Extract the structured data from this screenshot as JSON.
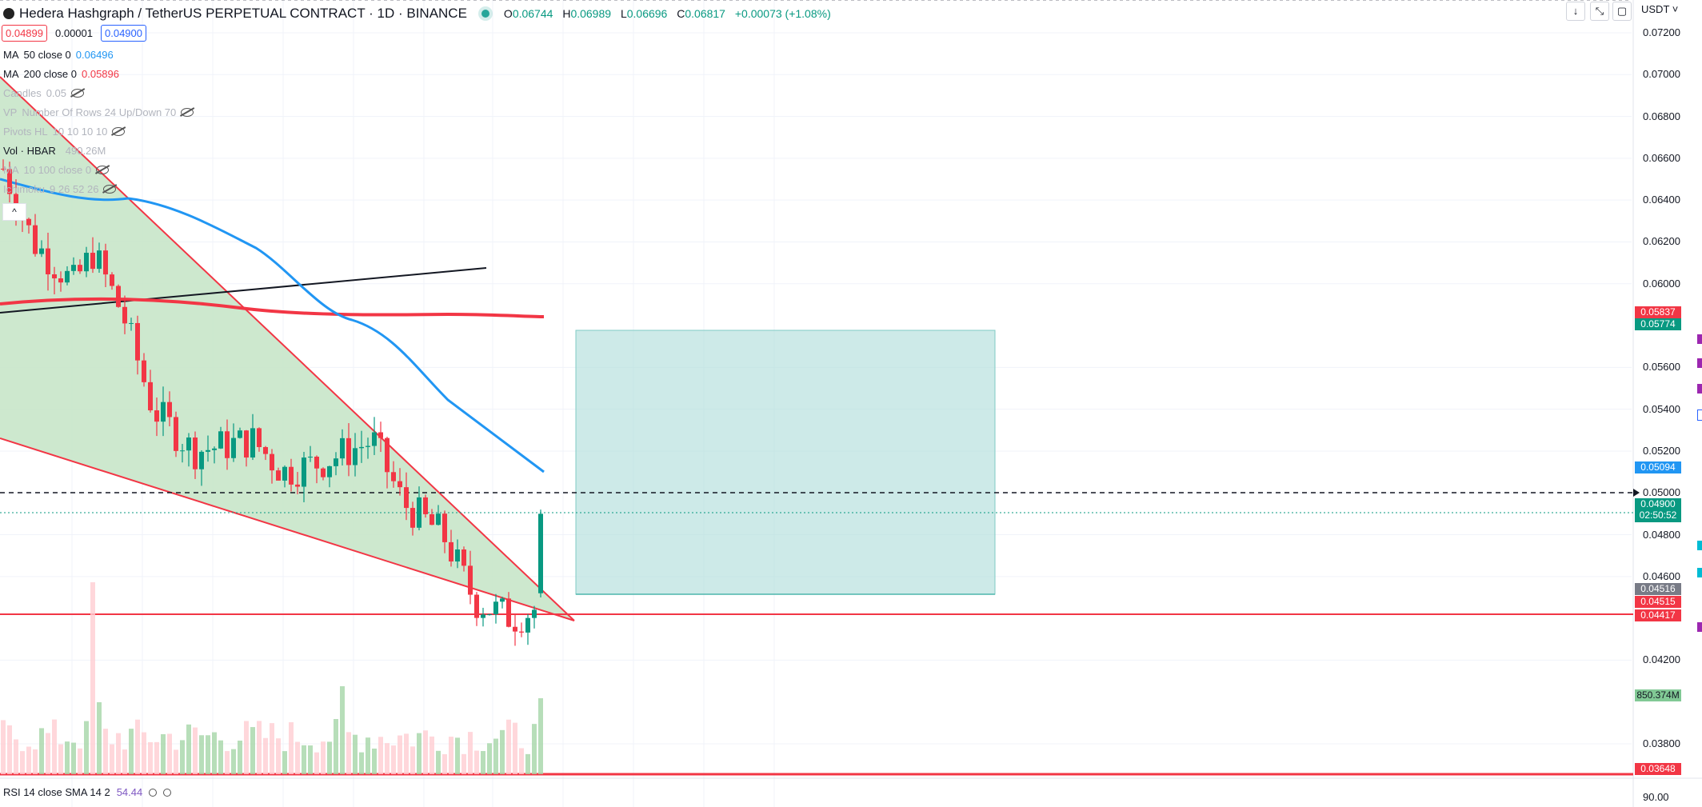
{
  "header": {
    "title": "Hedera Hashgraph / TetherUS PERPETUAL CONTRACT · 1D · BINANCE",
    "ohlc": [
      {
        "k": "O",
        "v": "0.06744"
      },
      {
        "k": "H",
        "v": "0.06989"
      },
      {
        "k": "L",
        "v": "0.06696"
      },
      {
        "k": "C",
        "v": "0.06817"
      }
    ],
    "change": "+0.00073 (+1.08%)"
  },
  "quote": {
    "bid": "0.04899",
    "spread": "0.00001",
    "ask": "0.04900"
  },
  "legend": [
    {
      "name": "MA",
      "params": "50 close 0",
      "value": "0.06496",
      "value_color": "#2196f3",
      "dim": false,
      "eye": false
    },
    {
      "name": "MA",
      "params": "200 close 0",
      "value": "0.05896",
      "value_color": "#f23645",
      "dim": false,
      "eye": false
    },
    {
      "name": "Candles",
      "params": "0.05",
      "value": "",
      "dim": true,
      "eye": true
    },
    {
      "name": "VP",
      "params": "Number Of Rows 24 Up/Down 70",
      "value": "",
      "dim": true,
      "eye": true
    },
    {
      "name": "Pivots HL",
      "params": "10 10 10 10",
      "value": "",
      "dim": true,
      "eye": true
    },
    {
      "name": "Vol · HBAR",
      "params": "",
      "value": "490.26M",
      "value_color": "#b2b5be",
      "dim": false,
      "eye": false
    },
    {
      "name": "MA",
      "params": "10 100 close 0",
      "value": "",
      "dim": true,
      "eye": true
    },
    {
      "name": "Ichimoku",
      "params": "9 26 52 26",
      "value": "",
      "dim": true,
      "eye": true
    }
  ],
  "collapse_label": "^",
  "currency": "USDT ˅",
  "top_buttons": [
    "↓",
    "⤡",
    "▢"
  ],
  "price_axis": [
    "0.07200",
    "0.07000",
    "0.06800",
    "0.06600",
    "0.06400",
    "0.06200",
    "0.06000",
    "0.05600",
    "0.05400",
    "0.05200",
    "0.05000",
    "0.04800",
    "0.04600",
    "0.04200",
    "0.03800"
  ],
  "price_tags": [
    {
      "text": "0.05837",
      "bg": "#f23645",
      "price": 0.05837
    },
    {
      "text": "0.05774",
      "bg": "#089981",
      "price": 0.05774
    },
    {
      "text": "0.05094",
      "bg": "#2196f3",
      "price": 0.05094
    },
    {
      "text": "0.04900",
      "sub": "02:50:52",
      "bg": "#089981",
      "price": 0.049
    },
    {
      "text": "0.04516",
      "bg": "#787b86",
      "price": 0.04516
    },
    {
      "text": "0.04515",
      "bg": "#f23645",
      "price": 0.04515
    },
    {
      "text": "0.04417",
      "bg": "#f23645",
      "price": 0.04417
    },
    {
      "text": "850.374M",
      "bg": "#81c995",
      "price": 0.036
    },
    {
      "text": "0.03648",
      "bg": "#f23645",
      "price": 0.03648
    }
  ],
  "rsi": {
    "label": "RSI 14 close SMA 14 2",
    "value": "54.44",
    "axis": "90.00"
  },
  "colors": {
    "up": "#089981",
    "down": "#f23645",
    "ma50": "#2196f3",
    "ma200": "#f23645",
    "wedge_fill": "#c8e6c9"
  }
}
